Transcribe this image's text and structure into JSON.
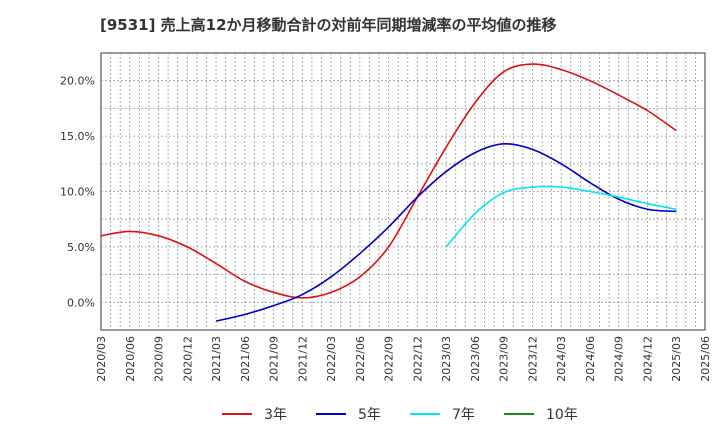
{
  "chart_data": {
    "type": "line",
    "title": "[9531]  売上高12か月移動合計の対前年同期増減率の平均値の推移",
    "xlabel": "",
    "ylabel": "",
    "x_ticks": [
      "2020/03",
      "2020/06",
      "2020/09",
      "2020/12",
      "2021/03",
      "2021/06",
      "2021/09",
      "2021/12",
      "2022/03",
      "2022/06",
      "2022/09",
      "2022/12",
      "2023/03",
      "2023/06",
      "2023/09",
      "2023/12",
      "2024/03",
      "2024/06",
      "2024/09",
      "2024/12",
      "2025/03",
      "2025/06"
    ],
    "y_ticks": [
      "0.0%",
      "5.0%",
      "10.0%",
      "15.0%",
      "20.0%"
    ],
    "y_tick_values": [
      0,
      5,
      10,
      15,
      20
    ],
    "ylim": [
      -2.5,
      22.5
    ],
    "grid": true,
    "legend_position": "bottom",
    "series": [
      {
        "name": "3年",
        "color": "#dd1111",
        "x": [
          "2020/03",
          "2020/06",
          "2020/09",
          "2020/12",
          "2021/03",
          "2021/06",
          "2021/09",
          "2021/12",
          "2022/03",
          "2022/06",
          "2022/09",
          "2022/12",
          "2023/03",
          "2023/06",
          "2023/09",
          "2023/12",
          "2024/03",
          "2024/06",
          "2024/09",
          "2024/12",
          "2025/03"
        ],
        "values": [
          6.0,
          6.4,
          6.0,
          5.0,
          3.5,
          1.9,
          0.9,
          0.4,
          0.9,
          2.3,
          5.0,
          9.5,
          14.0,
          18.0,
          20.8,
          21.5,
          21.0,
          20.0,
          18.7,
          17.3,
          15.5
        ]
      },
      {
        "name": "5年",
        "color": "#0000cc",
        "x": [
          "2021/03",
          "2021/06",
          "2021/09",
          "2021/12",
          "2022/03",
          "2022/06",
          "2022/09",
          "2022/12",
          "2023/03",
          "2023/06",
          "2023/09",
          "2023/12",
          "2024/03",
          "2024/06",
          "2024/09",
          "2024/12",
          "2025/03"
        ],
        "values": [
          -1.7,
          -1.1,
          -0.3,
          0.7,
          2.3,
          4.4,
          6.8,
          9.5,
          11.8,
          13.5,
          14.3,
          13.8,
          12.5,
          10.8,
          9.3,
          8.4,
          8.2
        ]
      },
      {
        "name": "7年",
        "color": "#00e5ee",
        "x": [
          "2023/03",
          "2023/06",
          "2023/09",
          "2023/12",
          "2024/03",
          "2024/06",
          "2024/09",
          "2024/12",
          "2025/03"
        ],
        "values": [
          5.0,
          8.0,
          9.9,
          10.4,
          10.4,
          10.0,
          9.5,
          8.9,
          8.4
        ]
      },
      {
        "name": "10年",
        "color": "#228822",
        "x": [],
        "values": []
      }
    ]
  }
}
